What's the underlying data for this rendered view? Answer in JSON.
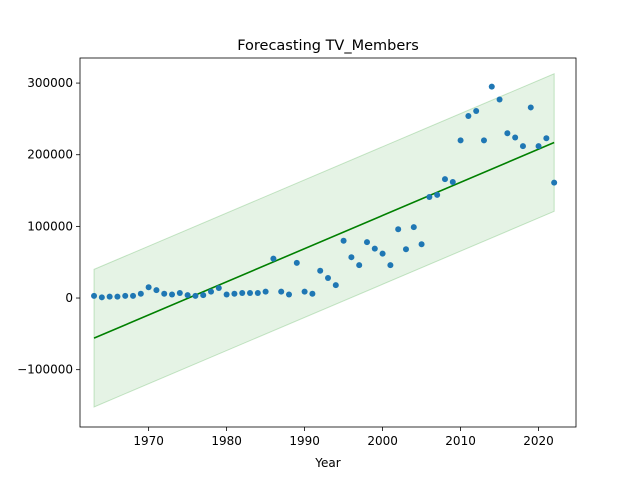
{
  "chart_data": {
    "type": "scatter",
    "title": "Forecasting TV_Members",
    "xlabel": "Year",
    "ylabel": "",
    "xlim": [
      1961.2,
      2024.8
    ],
    "ylim": [
      -180000,
      335000
    ],
    "x_ticks": [
      1970,
      1980,
      1990,
      2000,
      2010,
      2020
    ],
    "x_tick_labels": [
      "1970",
      "1980",
      "1990",
      "2000",
      "2010",
      "2020"
    ],
    "y_ticks": [
      -100000,
      0,
      100000,
      200000,
      300000
    ],
    "y_tick_labels": [
      "−100000",
      "0",
      "100000",
      "200000",
      "300000"
    ],
    "grid": false,
    "series": [
      {
        "type": "scatter",
        "color": "#1f77b4",
        "x": [
          1963,
          1964,
          1965,
          1966,
          1967,
          1968,
          1969,
          1970,
          1971,
          1972,
          1973,
          1974,
          1975,
          1976,
          1977,
          1978,
          1979,
          1980,
          1981,
          1982,
          1983,
          1984,
          1985,
          1986,
          1987,
          1988,
          1989,
          1990,
          1991,
          1992,
          1993,
          1994,
          1995,
          1996,
          1997,
          1998,
          1999,
          2000,
          2001,
          2002,
          2003,
          2004,
          2005,
          2006,
          2007,
          2008,
          2009,
          2010,
          2011,
          2012,
          2013,
          2014,
          2015,
          2016,
          2017,
          2018,
          2019,
          2020,
          2021,
          2022
        ],
        "y": [
          3000,
          1000,
          2000,
          2000,
          3000,
          3000,
          6000,
          15000,
          11000,
          6000,
          5000,
          7000,
          4000,
          3000,
          4000,
          9000,
          14000,
          5000,
          6000,
          7000,
          7000,
          7000,
          9000,
          55000,
          9000,
          5000,
          49000,
          9000,
          6000,
          38000,
          28000,
          18000,
          80000,
          57000,
          46000,
          78000,
          69000,
          62000,
          46000,
          96000,
          68000,
          99000,
          75000,
          141000,
          144000,
          166000,
          162000,
          220000,
          254000,
          261000,
          220000,
          295000,
          277000,
          230000,
          224000,
          212000,
          266000,
          212000,
          223000,
          161000
        ]
      },
      {
        "type": "line",
        "color": "#008000",
        "x": [
          1963,
          2022
        ],
        "y": [
          -56000,
          217000
        ]
      },
      {
        "type": "area",
        "color": "#2ca02c",
        "x": [
          1963,
          2022
        ],
        "y_lower": [
          -152000,
          121000
        ],
        "y_upper": [
          40000,
          313000
        ]
      }
    ]
  }
}
